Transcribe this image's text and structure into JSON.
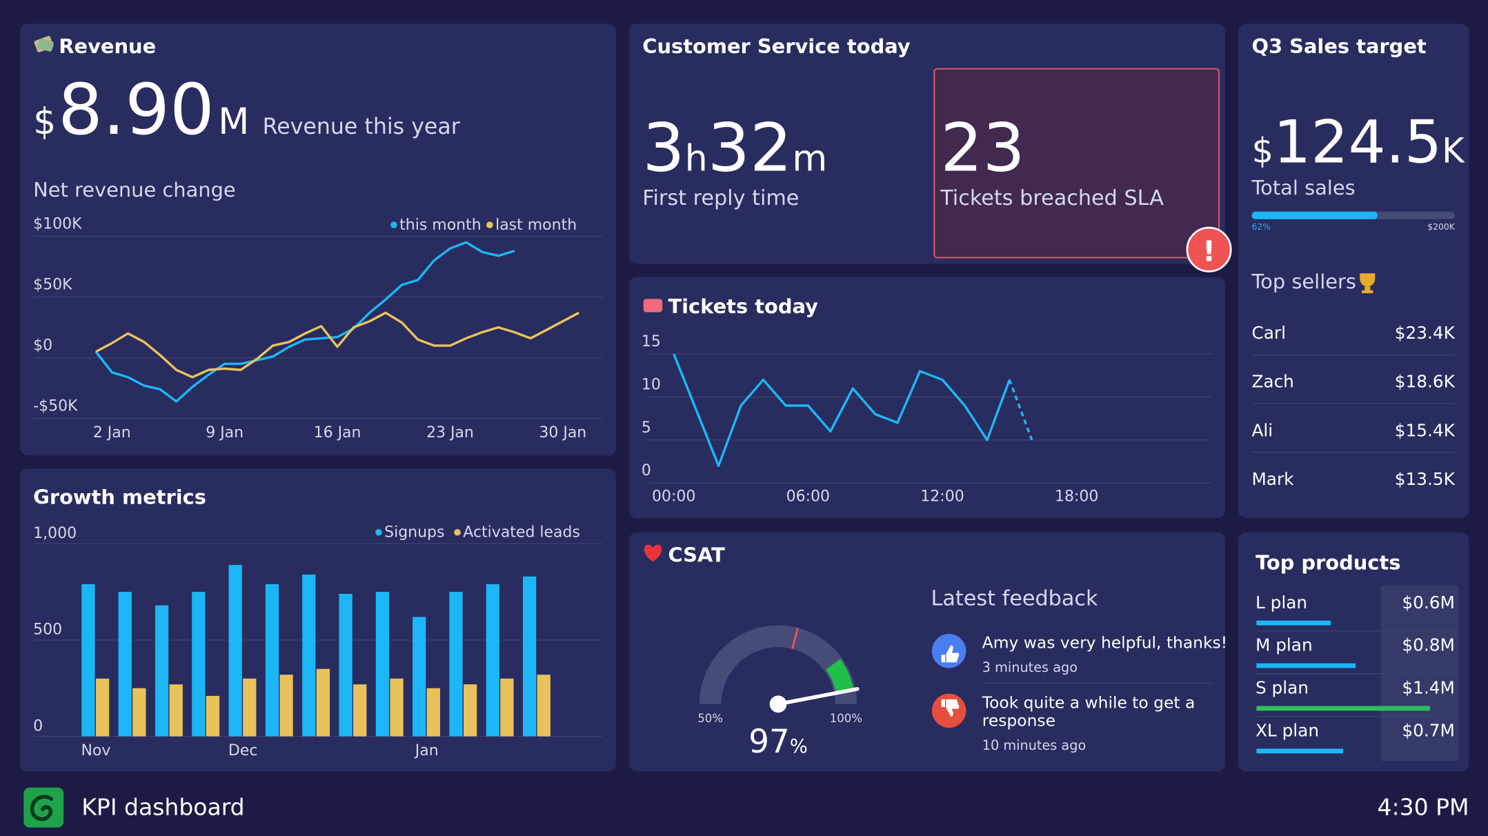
{
  "revenue": {
    "title": "Revenue",
    "currency": "$",
    "amount": "8.90",
    "unit": "M",
    "caption": "Revenue this year",
    "chart": {
      "type": "line",
      "title": "Net revenue change",
      "categories": [
        null,
        "2 Jan",
        null,
        null,
        null,
        null,
        null,
        null,
        "9 Jan",
        null,
        null,
        null,
        null,
        null,
        null,
        "16 Jan",
        null,
        null,
        null,
        null,
        null,
        null,
        "23 Jan",
        null,
        null,
        null,
        null,
        null,
        null,
        "30 Jan",
        null
      ],
      "series": [
        {
          "name": "this month",
          "color": "#1cb6f6",
          "values": [
            5,
            -12,
            -16,
            -23,
            -26,
            -36,
            -24,
            -14,
            -5,
            -5,
            -2,
            1,
            9,
            15,
            16,
            17,
            24,
            37,
            48,
            60,
            64,
            80,
            90,
            95,
            87,
            84,
            88,
            null,
            null,
            null,
            null
          ]
        },
        {
          "name": "last month",
          "color": "#e9c25b",
          "values": [
            5,
            12,
            20,
            13,
            2,
            -10,
            -16,
            -10,
            -9,
            -10,
            -1,
            10,
            13,
            20,
            26,
            9,
            25,
            30,
            37,
            29,
            15,
            10,
            10,
            16,
            21,
            25,
            21,
            16,
            23,
            30,
            37
          ]
        }
      ],
      "ylim": [
        -50,
        100
      ],
      "yticks": [
        {
          "value": -50,
          "label": "-$50K"
        },
        {
          "value": 0,
          "label": "$0"
        },
        {
          "value": 50,
          "label": "$50K"
        },
        {
          "value": 100,
          "label": "$100K"
        }
      ],
      "grid": true,
      "legend": "top-right"
    }
  },
  "growth": {
    "chart": {
      "type": "bar",
      "title": "Growth metrics",
      "categories": [
        "Nov",
        null,
        null,
        null,
        "Dec",
        null,
        null,
        null,
        null,
        "Jan",
        null,
        null,
        null
      ],
      "series": [
        {
          "name": "Signups",
          "color": "#1cb6f6",
          "values": [
            790,
            750,
            680,
            750,
            890,
            790,
            840,
            740,
            750,
            620,
            750,
            790,
            830
          ]
        },
        {
          "name": "Activated leads",
          "color": "#e9c25b",
          "values": [
            300,
            250,
            270,
            210,
            300,
            320,
            350,
            270,
            300,
            250,
            270,
            300,
            320
          ]
        }
      ],
      "ylim": [
        0,
        1000
      ],
      "yticks": [
        0,
        500,
        {
          "value": 1000,
          "label": "1,000"
        }
      ],
      "grid": true,
      "legend": "top-right"
    }
  },
  "customer_service": {
    "title": "Customer Service today",
    "first_reply": {
      "hours": 3,
      "hours_unit": "h",
      "minutes": 32,
      "minutes_unit": "m",
      "caption": "First reply time"
    },
    "sla": {
      "value": 23,
      "caption": "Tickets breached SLA",
      "alert": "!"
    }
  },
  "tickets": {
    "chart": {
      "type": "line",
      "title": "Tickets today",
      "x": [
        0,
        1,
        2,
        3,
        4,
        5,
        6,
        7,
        8,
        9,
        10,
        11,
        12,
        13,
        14,
        15,
        16
      ],
      "series": [
        {
          "name": "Tickets",
          "color": "#1cb6f6",
          "values": [
            15,
            8.5,
            2,
            9,
            12,
            9,
            9,
            6,
            11,
            8,
            7,
            13,
            12,
            9,
            5,
            12,
            5
          ]
        }
      ],
      "dashed_last_segment": true,
      "xlim": [
        0,
        24
      ],
      "xticks": [
        {
          "value": 0,
          "label": "00:00"
        },
        {
          "value": 6,
          "label": "06:00"
        },
        {
          "value": 12,
          "label": "12:00"
        },
        {
          "value": 18,
          "label": "18:00"
        }
      ],
      "ylim": [
        0,
        15
      ],
      "yticks": [
        0,
        5,
        10,
        15
      ],
      "grid": true
    }
  },
  "csat": {
    "title": "CSAT",
    "gauge": {
      "type": "gauge",
      "min": 50,
      "max": 100,
      "value": 97,
      "unit": "%",
      "target": 79,
      "good_from": 90,
      "ticks": [
        {
          "value": 50,
          "label": "50%"
        },
        {
          "value": 100,
          "label": "100%"
        }
      ]
    },
    "feedback": {
      "title": "Latest feedback",
      "items": [
        {
          "sentiment": "positive",
          "lines": [
            "Amy was very helpful, thanks!"
          ],
          "time": "3 minutes ago"
        },
        {
          "sentiment": "negative",
          "lines": [
            "Took quite a while to get a",
            "response"
          ],
          "time": "10 minutes ago"
        }
      ]
    }
  },
  "sales_target": {
    "title": "Q3 Sales target",
    "currency": "$",
    "amount": "124.5",
    "unit": "K",
    "caption": "Total sales",
    "progress": {
      "value": 62,
      "label": "62%",
      "target_label": "$200K",
      "color": "#1cb6f6"
    },
    "sellers_title": "Top sellers",
    "sellers": [
      [
        "Carl",
        "$23.4K"
      ],
      [
        "Zach",
        "$18.6K"
      ],
      [
        "Ali",
        "$15.4K"
      ],
      [
        "Mark",
        "$13.5K"
      ]
    ]
  },
  "top_products": {
    "chart": {
      "type": "hbar",
      "title": "Top products",
      "categories": [
        "L plan",
        "M plan",
        "S plan",
        "XL plan"
      ],
      "values": [
        0.6,
        0.8,
        1.4,
        0.7
      ],
      "value_labels": [
        "$0.6M",
        "$0.8M",
        "$1.4M",
        "$0.7M"
      ],
      "colors": [
        "#1cb6f6",
        "#1cb6f6",
        "#2fbf5a",
        "#1cb6f6"
      ],
      "xlim": [
        0,
        1.6
      ]
    }
  },
  "footer": {
    "title": "KPI dashboard",
    "time": "4:30 PM"
  }
}
